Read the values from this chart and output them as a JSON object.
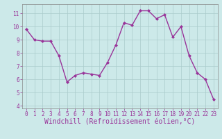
{
  "x": [
    0,
    1,
    2,
    3,
    4,
    5,
    6,
    7,
    8,
    9,
    10,
    11,
    12,
    13,
    14,
    15,
    16,
    17,
    18,
    19,
    20,
    21,
    22,
    23
  ],
  "y": [
    9.8,
    9.0,
    8.9,
    8.9,
    7.8,
    5.8,
    6.3,
    6.5,
    6.4,
    6.3,
    7.3,
    8.6,
    10.3,
    10.1,
    11.2,
    11.2,
    10.6,
    10.9,
    9.2,
    10.0,
    7.8,
    6.5,
    6.0,
    4.5
  ],
  "line_color": "#993399",
  "marker": "D",
  "marker_size": 2.0,
  "background_color": "#cce9e9",
  "grid_color": "#aacccc",
  "xlabel": "Windchill (Refroidissement éolien,°C)",
  "ylim": [
    3.8,
    11.7
  ],
  "xlim": [
    -0.5,
    23.5
  ],
  "yticks": [
    4,
    5,
    6,
    7,
    8,
    9,
    10,
    11
  ],
  "xticks": [
    0,
    1,
    2,
    3,
    4,
    5,
    6,
    7,
    8,
    9,
    10,
    11,
    12,
    13,
    14,
    15,
    16,
    17,
    18,
    19,
    20,
    21,
    22,
    23
  ],
  "tick_color": "#993399",
  "label_color": "#993399",
  "tick_fontsize": 5.5,
  "xlabel_fontsize": 7.0,
  "line_width": 1.0,
  "spine_color": "#888888"
}
